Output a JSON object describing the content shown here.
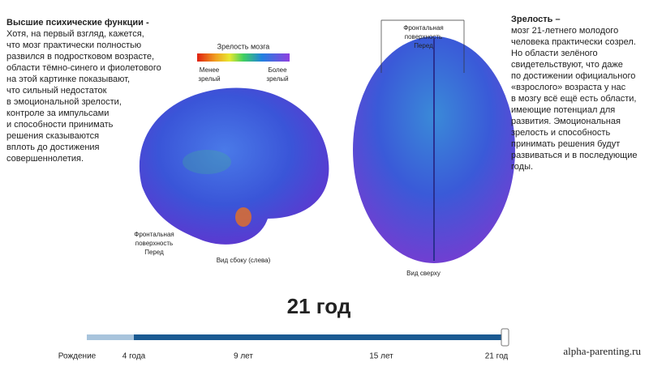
{
  "left_text": {
    "heading": "Высшие психические функции -",
    "lines": [
      "Хотя, на первый взгляд, кажется,",
      "что мозг практически полностью",
      "развился в подростковом возрасте,",
      "области тёмно-синего и фиолетового",
      "на этой картинке показывают,",
      "что сильный недостаток",
      "в эмоциональной зрелости,",
      "контроле за импульсами",
      "и способности принимать",
      "решения сказываются",
      "вплоть до достижения",
      "совершеннолетия."
    ]
  },
  "legend": {
    "title": "Зрелость мозга",
    "less": [
      "Менее",
      "зрелый"
    ],
    "more": [
      "Более",
      "зрелый"
    ]
  },
  "side_view": {
    "front_label": [
      "Фронтальная",
      "поверхность",
      "Перед"
    ],
    "caption": "Вид сбоку (слева)"
  },
  "top_view": {
    "front_label": [
      "Фронтальная",
      "поверхность",
      "Перед"
    ],
    "caption": "Вид сверху"
  },
  "right_text": {
    "heading": "Зрелость –",
    "lines": [
      "мозг 21-летнего молодого",
      "человека практически созрел.",
      "Но области зелёного",
      "свидетельствуют, что даже",
      "по достижении официального",
      "«взрослого» возраста у нас",
      "в мозгу всё ещё есть области,",
      "имеющие потенциал для",
      "развития. Эмоциональная",
      "зрелость и способность",
      "принимать решения будут",
      "развиваться и в последующие",
      "годы."
    ]
  },
  "age_title": "21 год",
  "timeline": {
    "labels": [
      "Рождение",
      "4 года",
      "9 лет",
      "15 лет",
      "21 год"
    ]
  },
  "watermark": "alpha-parenting.ru"
}
